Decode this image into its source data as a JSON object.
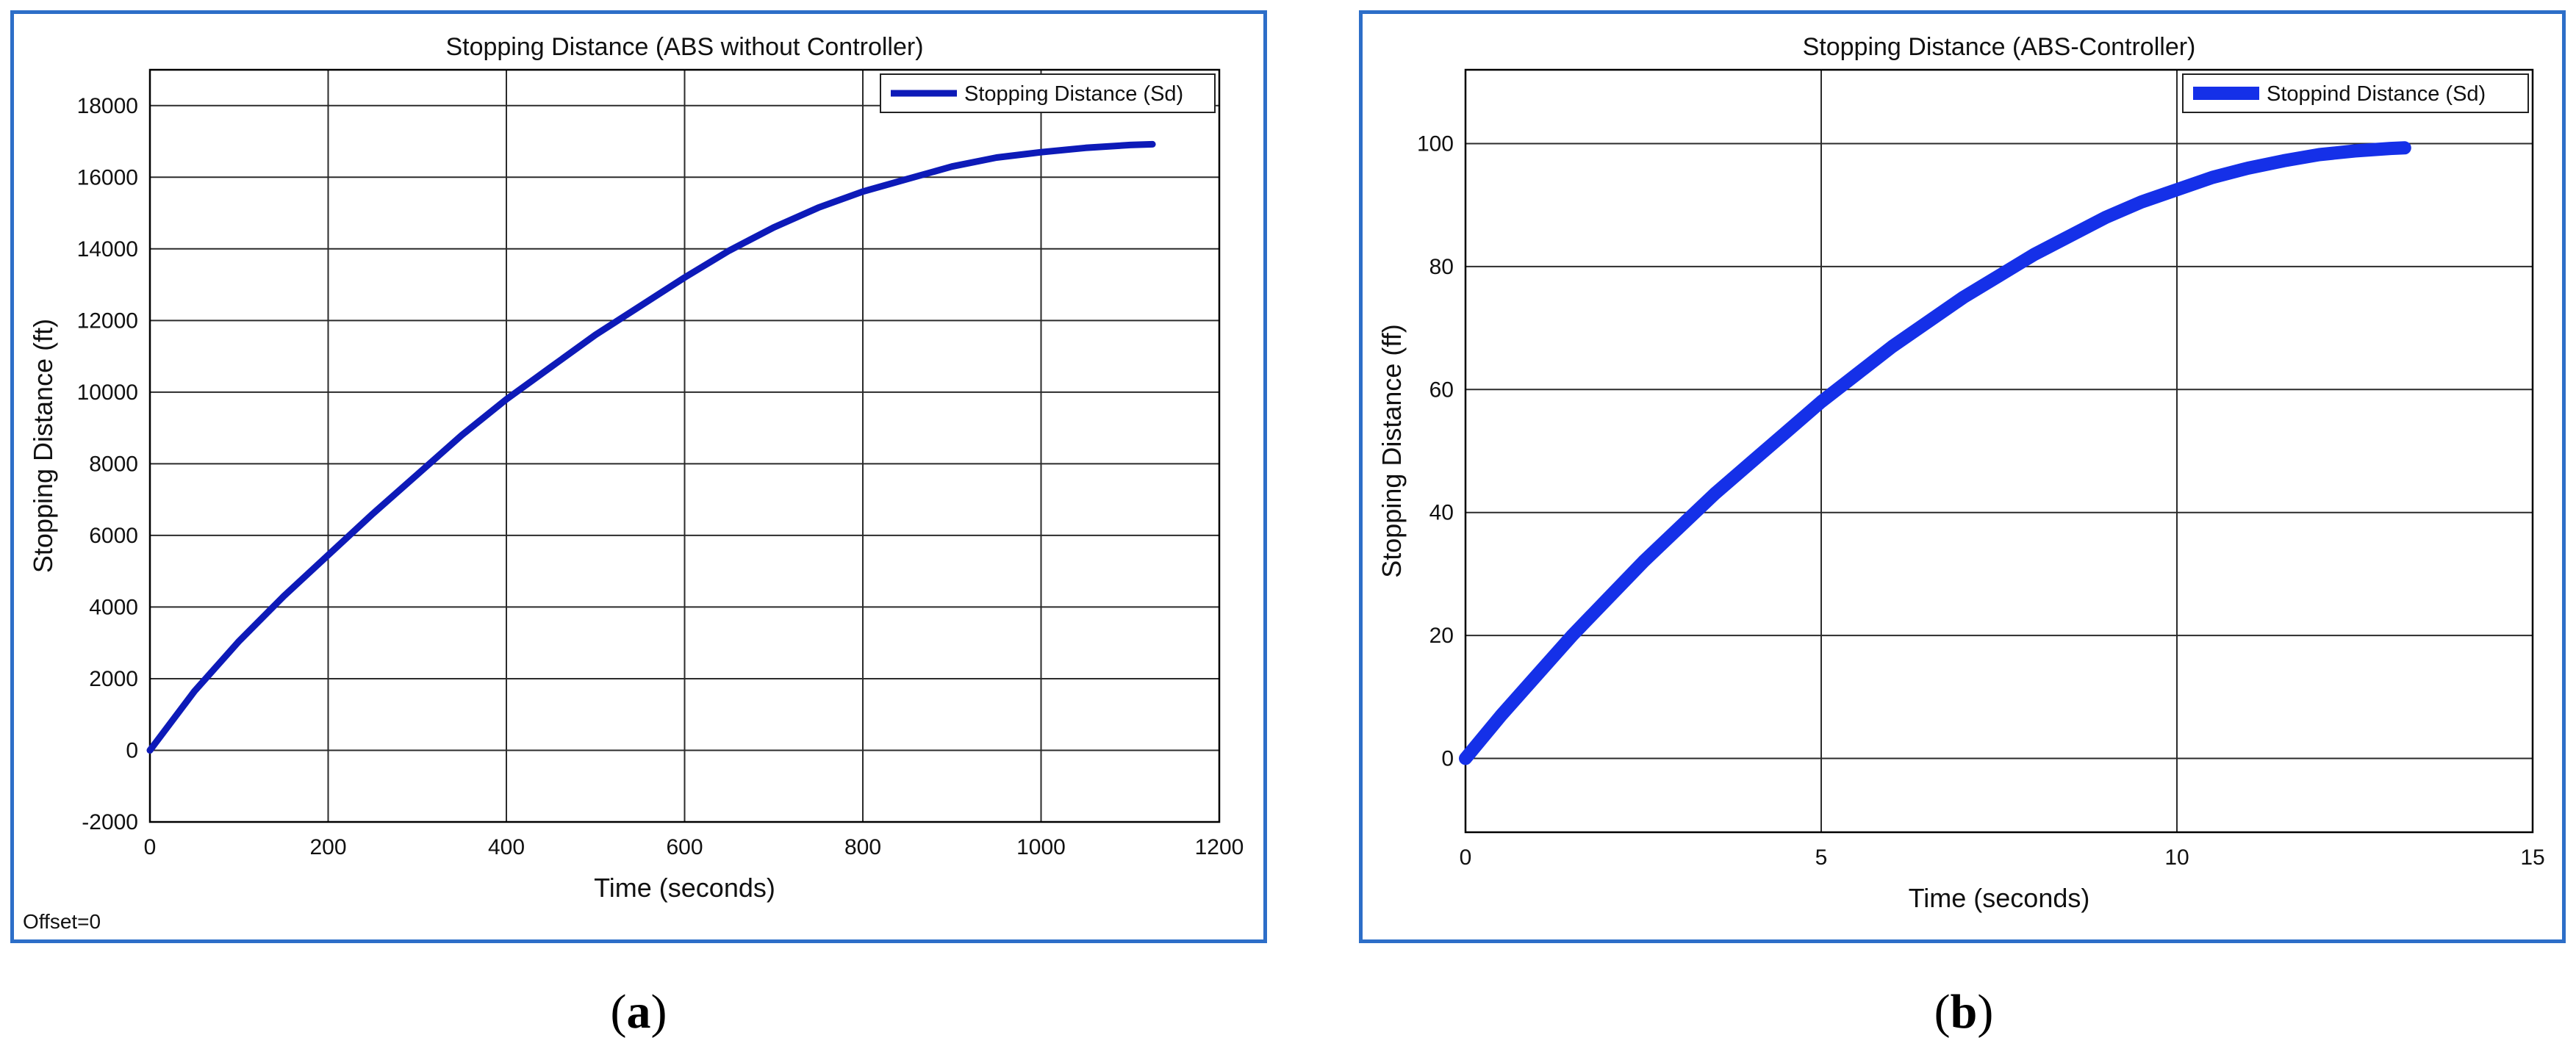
{
  "figure": {
    "colors": {
      "frame_border": "#2d6ec8",
      "grid": "#2b2b2b",
      "axes": "#000000"
    }
  },
  "captions": {
    "a": {
      "open": "(",
      "letter": "a",
      "close": ")"
    },
    "b": {
      "open": "(",
      "letter": "b",
      "close": ")"
    }
  },
  "chart_data": [
    {
      "id": "a",
      "type": "line",
      "title": "Stopping Distance (ABS without Controller)",
      "xlabel": "Time (seconds)",
      "ylabel": "Stopping Distance (ft)",
      "xlim": [
        0,
        1200
      ],
      "ylim": [
        -2000,
        19000
      ],
      "xticks": [
        0,
        200,
        400,
        600,
        800,
        1000,
        1200
      ],
      "yticks": [
        -2000,
        0,
        2000,
        4000,
        6000,
        8000,
        10000,
        12000,
        14000,
        16000,
        18000
      ],
      "grid": true,
      "legend_position": "top-right",
      "footnote": "Offset=0",
      "line_color": "#0d1ab8",
      "series": [
        {
          "name": "Stopping Distance (Sd)",
          "x": [
            0,
            50,
            100,
            150,
            200,
            250,
            300,
            350,
            400,
            450,
            500,
            550,
            600,
            650,
            700,
            750,
            800,
            850,
            900,
            950,
            1000,
            1050,
            1100,
            1125
          ],
          "y": [
            0,
            1650,
            3050,
            4300,
            5450,
            6600,
            7700,
            8800,
            9800,
            10700,
            11600,
            12400,
            13200,
            13950,
            14600,
            15150,
            15600,
            15950,
            16300,
            16550,
            16700,
            16820,
            16900,
            16920
          ]
        }
      ]
    },
    {
      "id": "b",
      "type": "line",
      "title": "Stopping Distance (ABS-Controller)",
      "xlabel": "Time (seconds)",
      "ylabel": "Stopping Distance (ff)",
      "xlim": [
        0,
        15
      ],
      "ylim": [
        -12,
        112
      ],
      "xticks": [
        0,
        5,
        10,
        15
      ],
      "yticks": [
        0,
        20,
        40,
        60,
        80,
        100
      ],
      "grid": true,
      "legend_position": "top-right",
      "line_color": "#1530e8",
      "series": [
        {
          "name": "Stoppind Distance (Sd)",
          "x": [
            0,
            0.5,
            1,
            1.5,
            2,
            2.5,
            3,
            3.5,
            4,
            4.5,
            5,
            5.5,
            6,
            6.5,
            7,
            7.5,
            8,
            8.5,
            9,
            9.5,
            10,
            10.5,
            11,
            11.5,
            12,
            12.5,
            13,
            13.2
          ],
          "y": [
            0,
            7,
            13.5,
            20,
            26,
            32,
            37.5,
            43,
            48,
            53,
            58,
            62.5,
            67,
            71,
            75,
            78.5,
            82,
            85,
            88,
            90.5,
            92.5,
            94.5,
            96,
            97.2,
            98.2,
            98.8,
            99.2,
            99.3
          ]
        }
      ]
    }
  ]
}
